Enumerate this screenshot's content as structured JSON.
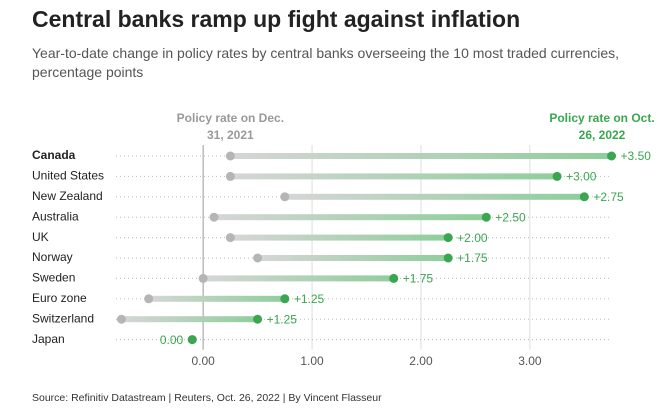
{
  "chart_data": {
    "type": "dumbbell",
    "title": "Central banks ramp up fight against inflation",
    "subtitle": "Year-to-date change in policy rates by central banks overseeing the 10 most traded currencies, percentage points",
    "source": "Source: Refinitiv Datastream | Reuters, Oct. 26, 2022 | By Vincent Flasseur",
    "categories": [
      "Canada",
      "United States",
      "New Zealand",
      "Australia",
      "UK",
      "Norway",
      "Sweden",
      "Euro zone",
      "Switzerland",
      "Japan"
    ],
    "series": [
      {
        "name": "Policy rate on Dec. 31, 2021",
        "color": "#b5b5b5",
        "values": [
          0.25,
          0.25,
          0.75,
          0.1,
          0.25,
          0.5,
          0,
          -0.5,
          -0.75,
          -0.1
        ]
      },
      {
        "name": "Policy rate on Oct. 26, 2022",
        "color": "#3aa64f",
        "values": [
          3.75,
          3.25,
          3.5,
          2.6,
          2.25,
          2.25,
          1.75,
          0.75,
          0.5,
          -0.1
        ]
      }
    ],
    "change": {
      "values": [
        3.5,
        3.0,
        2.75,
        2.5,
        2.0,
        1.75,
        1.75,
        1.25,
        1.25,
        0
      ],
      "value_labels": [
        "+3.50",
        "+3.00",
        "+2.75",
        "+2.50",
        "+2.00",
        "+1.75",
        "+1.75",
        "+1.25",
        "+1.25",
        "0.00"
      ]
    },
    "xlim": [
      -0.8,
      3.8
    ],
    "xticks": [
      {
        "value": 0,
        "label": "0.00"
      },
      {
        "value": 1,
        "label": "1.00"
      },
      {
        "value": 2,
        "label": "2.00"
      },
      {
        "value": 3,
        "label": "3.00"
      }
    ],
    "grid": true
  }
}
